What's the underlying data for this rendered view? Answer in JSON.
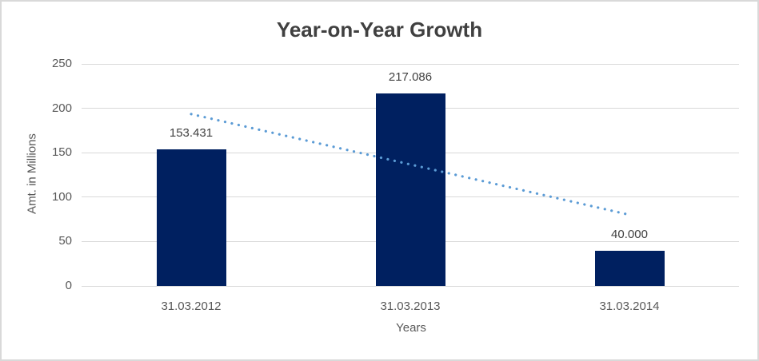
{
  "chart_data": {
    "type": "bar",
    "title": "Year-on-Year Growth",
    "xlabel": "Years",
    "ylabel": "Amt. in Millions",
    "categories": [
      "31.03.2012",
      "31.03.2013",
      "31.03.2014"
    ],
    "values": [
      153.431,
      217.086,
      40.0
    ],
    "value_labels": [
      "153.431",
      "217.086",
      "40.000"
    ],
    "ylim": [
      0,
      250
    ],
    "yticks": [
      0,
      50,
      100,
      150,
      200,
      250
    ],
    "grid": "horizontal",
    "legend": "none",
    "trendline": {
      "style": "dotted",
      "color": "#5B9BD5",
      "start_value": 193.5,
      "end_value": 80.1
    },
    "style": {
      "bar_color": "#002060",
      "gridline_color": "#D9D9D9",
      "axis_line_color": "#D9D9D9",
      "axis_text_color": "#595959",
      "value_label_color": "#404040",
      "title_color": "#404040",
      "background": "#FFFFFF",
      "border_color": "#D9D9D9"
    }
  }
}
